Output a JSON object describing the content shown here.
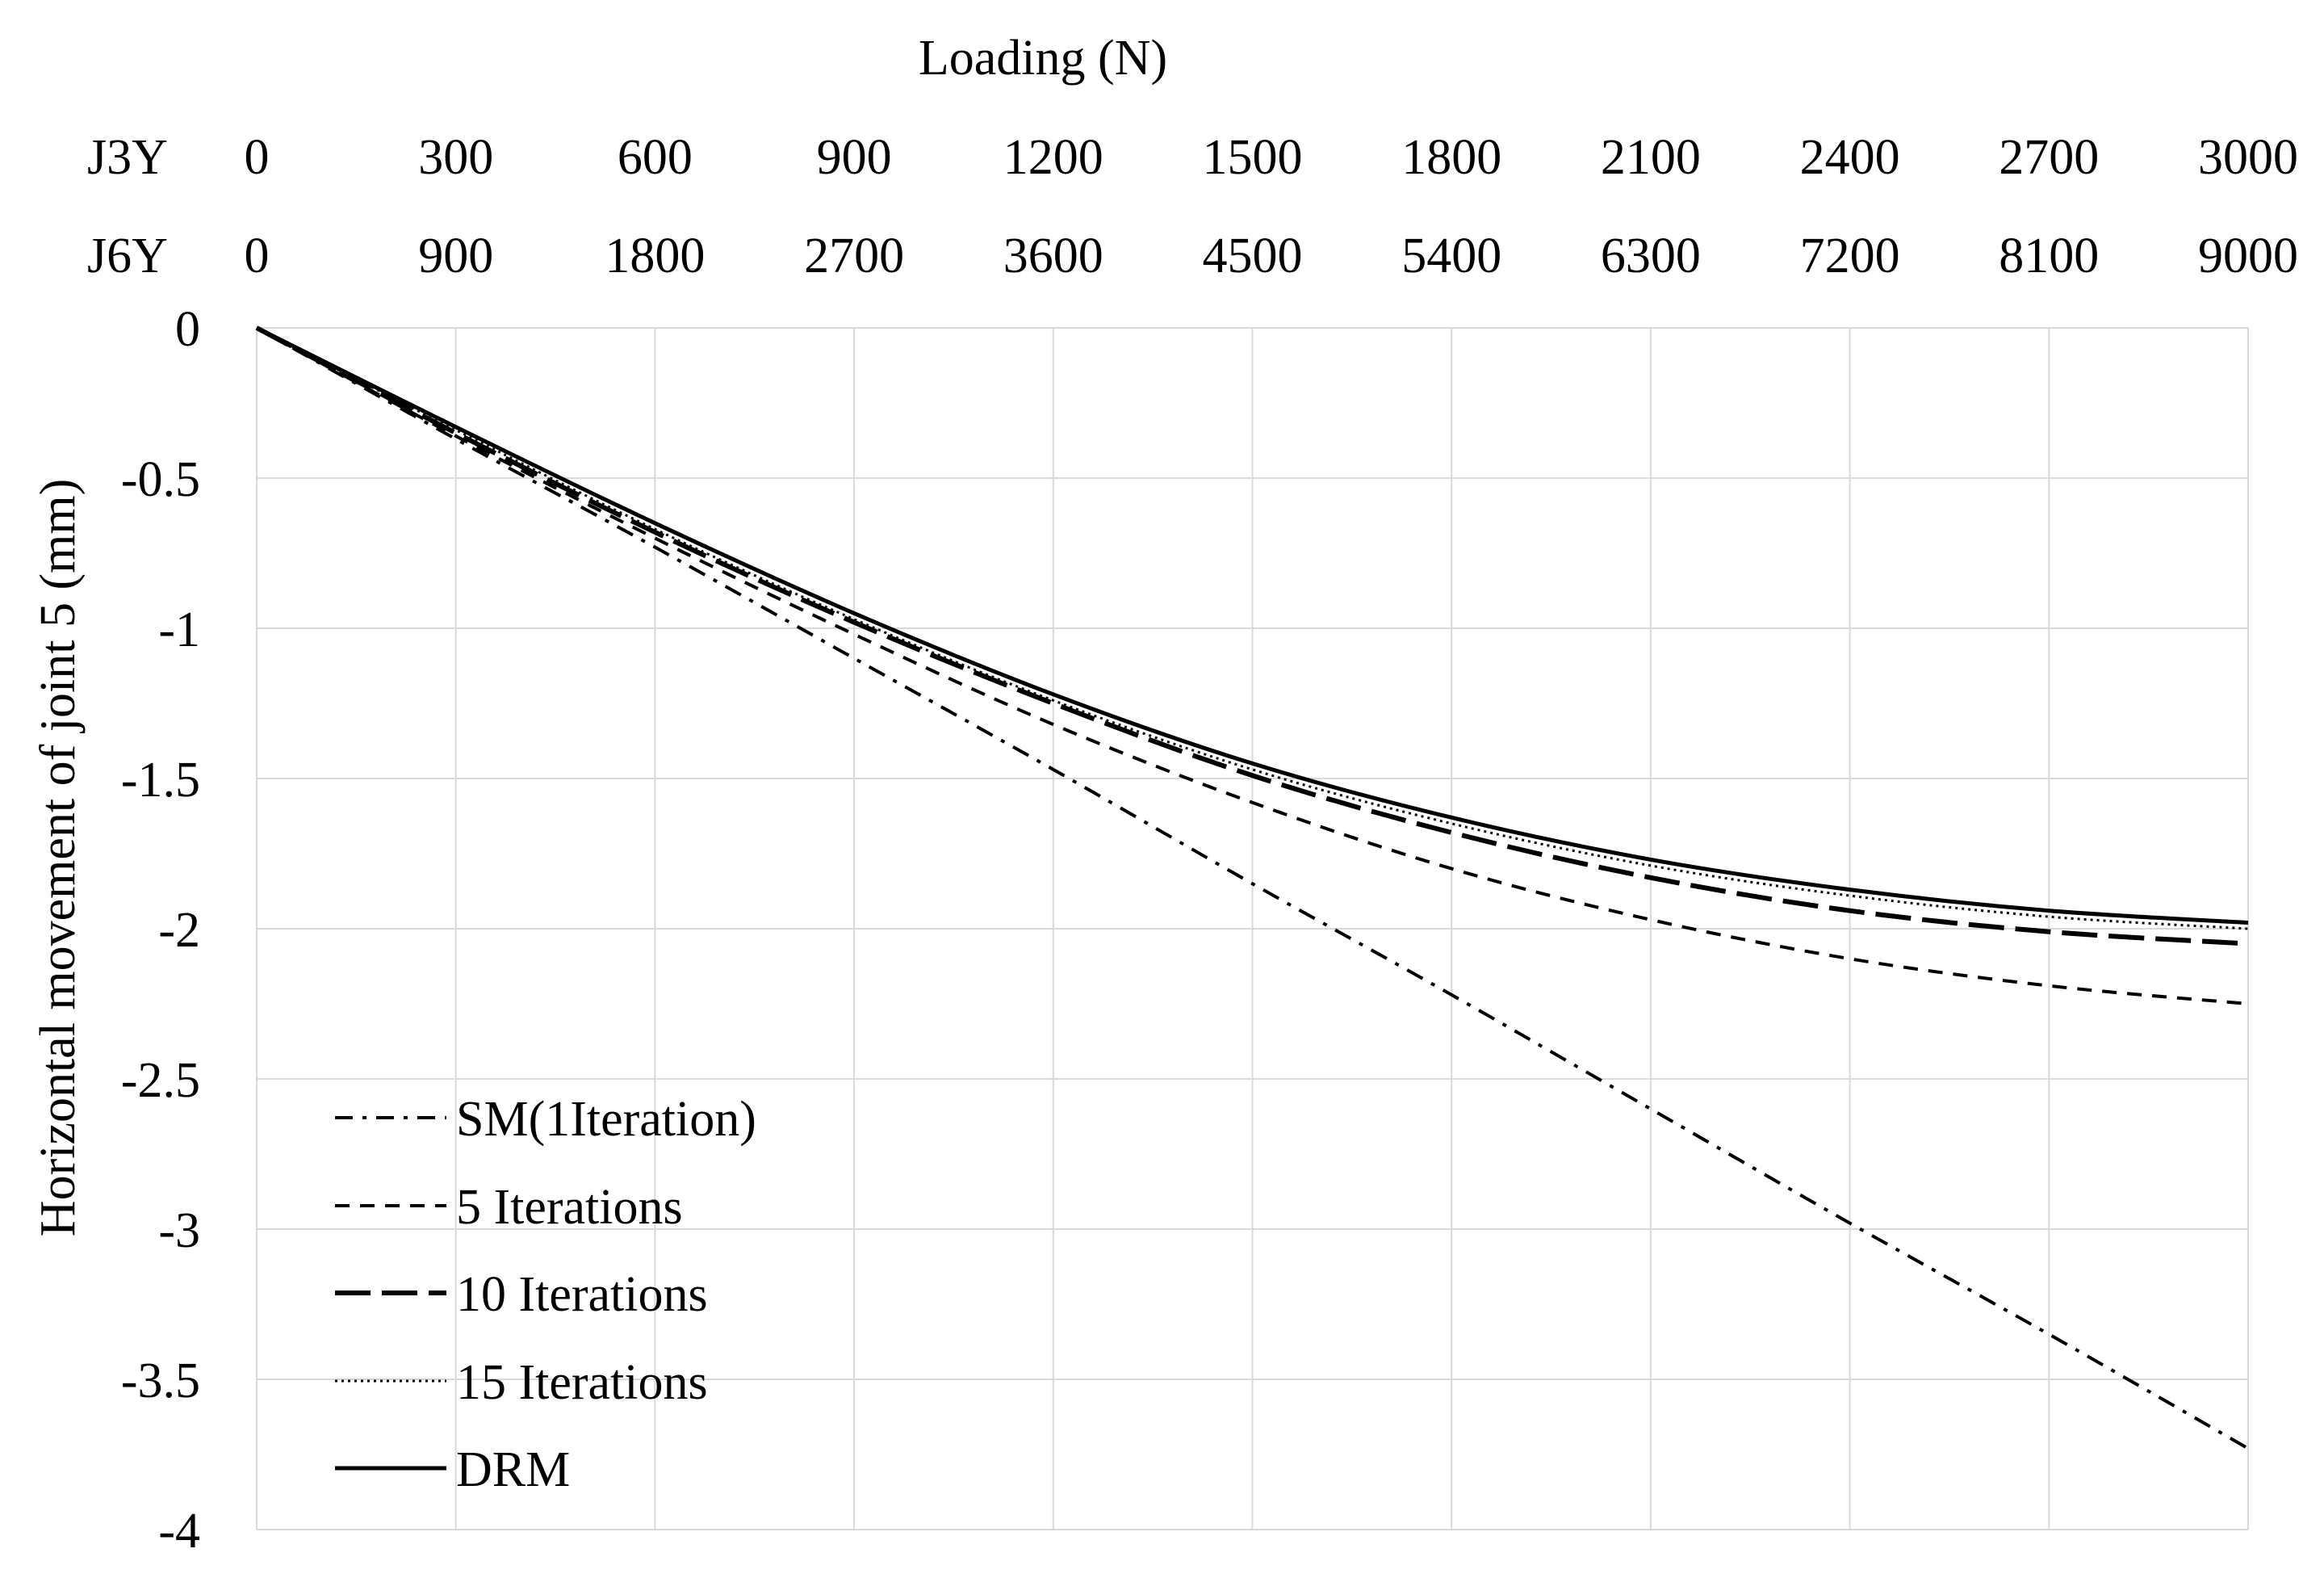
{
  "chart_data": {
    "type": "line",
    "title": "Loading (N)",
    "ylabel": "Horizontal movement of joint 5 (mm)",
    "ylim": [
      -4,
      0
    ],
    "yticks": [
      0,
      -0.5,
      -1,
      -1.5,
      -2,
      -2.5,
      -3,
      -3.5,
      -4
    ],
    "ytick_labels": [
      "0",
      "-0.5",
      "-1",
      "-1.5",
      "-2",
      "-2.5",
      "-3",
      "-3.5",
      "-4"
    ],
    "x_axes": [
      {
        "name": "J3Y",
        "ticks": [
          "0",
          "300",
          "600",
          "900",
          "1200",
          "1500",
          "1800",
          "2100",
          "2400",
          "2700",
          "3000"
        ]
      },
      {
        "name": "J6Y",
        "ticks": [
          "0",
          "900",
          "1800",
          "2700",
          "3600",
          "4500",
          "5400",
          "6300",
          "7200",
          "8100",
          "9000"
        ]
      }
    ],
    "x": [
      0,
      300,
      600,
      900,
      1200,
      1500,
      1800,
      2100,
      2400,
      2700,
      3000
    ],
    "grid": true,
    "legend_position": "bottom-left",
    "series": [
      {
        "name": "SM(1Iteration)",
        "style": "dash-dot",
        "values": [
          0,
          -0.37,
          -0.73,
          -1.1,
          -1.47,
          -1.85,
          -2.22,
          -2.6,
          -2.98,
          -3.35,
          -3.73
        ]
      },
      {
        "name": "5 Iterations",
        "style": "short-dash",
        "values": [
          0,
          -0.36,
          -0.7,
          -1.02,
          -1.32,
          -1.58,
          -1.8,
          -1.97,
          -2.1,
          -2.19,
          -2.25
        ]
      },
      {
        "name": "10 Iterations",
        "style": "long-dash",
        "values": [
          0,
          -0.35,
          -0.68,
          -0.98,
          -1.25,
          -1.49,
          -1.68,
          -1.83,
          -1.94,
          -2.01,
          -2.05
        ]
      },
      {
        "name": "15 Iterations",
        "style": "dotted",
        "values": [
          0,
          -0.34,
          -0.67,
          -0.97,
          -1.24,
          -1.47,
          -1.65,
          -1.79,
          -1.89,
          -1.96,
          -2.0
        ]
      },
      {
        "name": "DRM",
        "style": "solid",
        "values": [
          0,
          -0.33,
          -0.65,
          -0.95,
          -1.22,
          -1.45,
          -1.63,
          -1.77,
          -1.87,
          -1.94,
          -1.98
        ]
      }
    ]
  }
}
